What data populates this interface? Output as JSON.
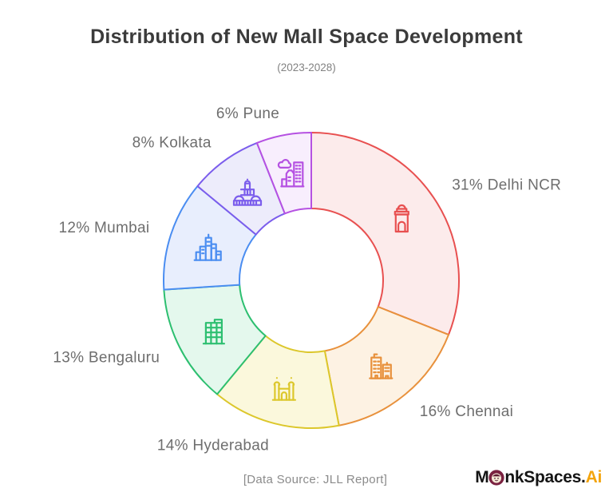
{
  "title": "Distribution of New Mall Space Development",
  "subtitle": "(2023-2028)",
  "footer": {
    "source_note": "[Data Source: JLL Report]"
  },
  "brand": {
    "prefix": "M",
    "middle": "nkSpaces.",
    "suffix": "Ai"
  },
  "chart_data": {
    "type": "pie",
    "variant": "donut",
    "title": "Distribution of New Mall Space Development",
    "subtitle": "(2023-2028)",
    "unit": "percent",
    "total": 100,
    "start_angle_deg": 0,
    "direction": "clockwise",
    "legend_position": "labels-around-slices",
    "categories": [
      "Delhi NCR",
      "Chennai",
      "Hyderabad",
      "Bengaluru",
      "Mumbai",
      "Kolkata",
      "Pune"
    ],
    "values": [
      31,
      16,
      14,
      13,
      12,
      8,
      6
    ],
    "slices": [
      {
        "label": "Delhi NCR",
        "value": 31,
        "label_text": "31% Delhi NCR",
        "color": "#e85050",
        "fill": "#fcebeb",
        "icon": "india-gate-icon"
      },
      {
        "label": "Chennai",
        "value": 16,
        "label_text": "16% Chennai",
        "color": "#e8913c",
        "fill": "#fdf2e3",
        "icon": "city-buildings-icon"
      },
      {
        "label": "Hyderabad",
        "value": 14,
        "label_text": "14% Hyderabad",
        "color": "#dcc72b",
        "fill": "#fbf8dc",
        "icon": "charminar-icon"
      },
      {
        "label": "Bengaluru",
        "value": 13,
        "label_text": "13% Bengaluru",
        "color": "#2dbf70",
        "fill": "#e4f8ed",
        "icon": "office-building-icon"
      },
      {
        "label": "Mumbai",
        "value": 12,
        "label_text": "12% Mumbai",
        "color": "#4a8df1",
        "fill": "#e8eefd",
        "icon": "skyline-icon"
      },
      {
        "label": "Kolkata",
        "value": 8,
        "label_text": "8% Kolkata",
        "color": "#7b5dec",
        "fill": "#edecfb",
        "icon": "victoria-memorial-icon"
      },
      {
        "label": "Pune",
        "value": 6,
        "label_text": "6% Pune",
        "color": "#b551e2",
        "fill": "#f8eefd",
        "icon": "cloud-buildings-icon"
      }
    ]
  }
}
